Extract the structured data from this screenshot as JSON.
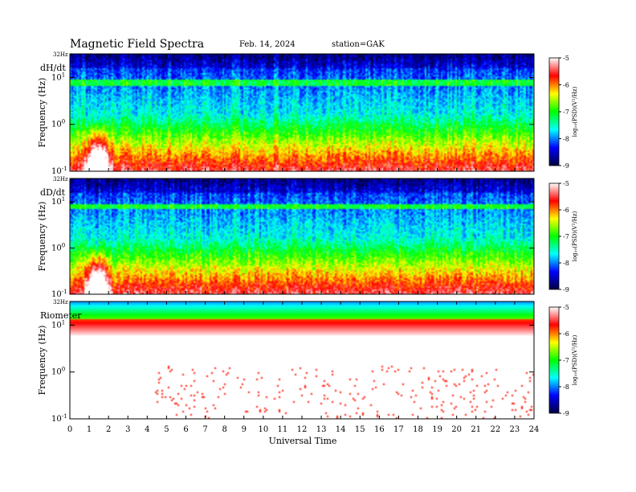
{
  "header": {
    "title": "Magnetic  Field  Spectra",
    "date": "Feb. 14, 2024",
    "station": "station=GAK"
  },
  "chart_data": {
    "type": "heatmap",
    "xlabel": "Universal Time",
    "x_ticks": [
      "0",
      "1",
      "2",
      "3",
      "4",
      "5",
      "6",
      "7",
      "8",
      "9",
      "10",
      "11",
      "12",
      "13",
      "14",
      "15",
      "16",
      "17",
      "18",
      "19",
      "20",
      "21",
      "22",
      "23",
      "24"
    ],
    "xlim": [
      0,
      24
    ],
    "y_scale": "log",
    "ylim_hz": [
      0.1,
      32
    ],
    "colorbar": {
      "label": "log₁₀(PSD)(V²/Hz)",
      "ticks": [
        "-5",
        "-6",
        "-7",
        "-8",
        "-9"
      ],
      "range": [
        -9,
        -5
      ],
      "colors": [
        "#000040",
        "#0000ff",
        "#00ffff",
        "#00ff00",
        "#ffff00",
        "#ff0000",
        "#ffffff"
      ]
    },
    "panels": [
      {
        "name": "dH/dt",
        "ylabel": "Frequency  (Hz)",
        "top_label": "32Hz",
        "y_ticks": [
          {
            "base": "10",
            "exp": "1"
          },
          {
            "base": "10",
            "exp": "0"
          },
          {
            "base": "10",
            "exp": "-1"
          }
        ]
      },
      {
        "name": "dD/dt",
        "ylabel": "Frequency  (Hz)",
        "top_label": "32Hz",
        "y_ticks": [
          {
            "base": "10",
            "exp": "1"
          },
          {
            "base": "10",
            "exp": "0"
          },
          {
            "base": "10",
            "exp": "-1"
          }
        ]
      },
      {
        "name": "Riometer",
        "ylabel": "Frequency  (Hz)",
        "top_label": "32Hz",
        "y_ticks": [
          {
            "base": "10",
            "exp": "1"
          },
          {
            "base": "10",
            "exp": "0"
          },
          {
            "base": "10",
            "exp": "-1"
          }
        ]
      }
    ]
  }
}
